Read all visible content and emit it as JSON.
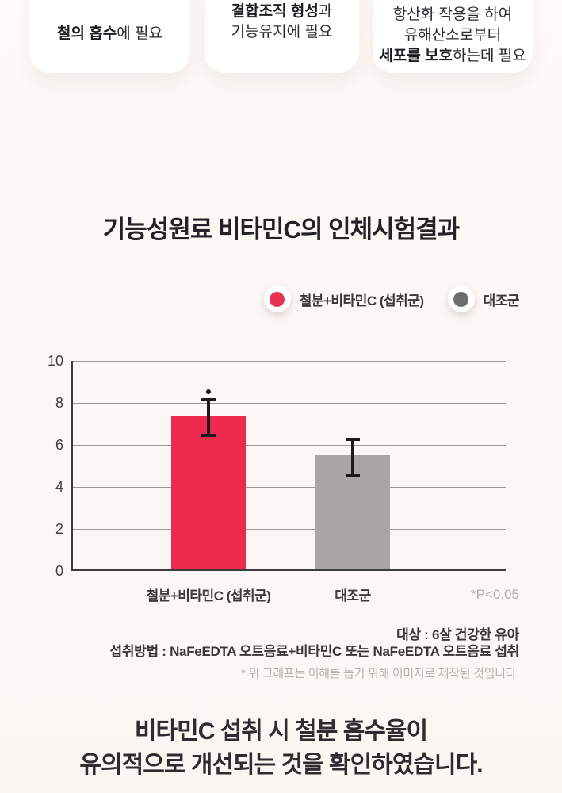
{
  "cards": [
    {
      "lines": [
        [
          {
            "t": "철의 흡수",
            "b": true
          },
          {
            "t": "에 필요",
            "b": false
          }
        ]
      ]
    },
    {
      "lines": [
        [
          {
            "t": "결합조직 형성",
            "b": true
          },
          {
            "t": "과",
            "b": false
          }
        ],
        [
          {
            "t": "기능유지에 필요",
            "b": false
          }
        ]
      ]
    },
    {
      "lines": [
        [
          {
            "t": "항산화 작용을 하여",
            "b": false
          }
        ],
        [
          {
            "t": "유해산소로부터",
            "b": false
          }
        ],
        [
          {
            "t": "세포를 보호",
            "b": true
          },
          {
            "t": "하는데 필요",
            "b": false
          }
        ]
      ]
    }
  ],
  "chart_data": {
    "type": "bar",
    "title": "기능성원료 비타민C의 인체시험결과",
    "categories": [
      "철분+비타민C (섭취군)",
      "대조군"
    ],
    "values": [
      7.3,
      5.4
    ],
    "error_bars": [
      0.9,
      0.9
    ],
    "ylim": [
      0,
      10
    ],
    "yticks": [
      0,
      2,
      4,
      6,
      8,
      10
    ],
    "grid": true,
    "legend_position": "top-right",
    "bars": [
      {
        "label": "철분+비타민C (섭취군)",
        "value": 7.3,
        "error": 0.9,
        "color": "#ed2b4f",
        "significant": true
      },
      {
        "label": "대조군",
        "value": 5.4,
        "error": 0.9,
        "color": "#a9a5a4",
        "significant": false
      }
    ],
    "legend": [
      {
        "label": "철분+비타민C (섭취군)",
        "color": "#e63354"
      },
      {
        "label": "대조군",
        "color": "#6f6c6c"
      }
    ],
    "annotation": "*P<0.05"
  },
  "notes": {
    "subject": "대상 : 6살 건강한 유아",
    "method": "섭취방법 : NaFeEDTA 오트음료+비타민C 또는 NaFeEDTA 오트음료 섭취",
    "disclaimer": "* 위 그래프는 이해를 돕기 위해 이미지로 제작된 것입니다."
  },
  "conclusion": {
    "line1": "비타민C 섭취 시 철분 흡수율이",
    "line2": "유의적으로 개선되는 것을 확인하였습니다."
  },
  "colors": {
    "accent_red": "#ed2b4f",
    "bar_gray": "#a9a5a4",
    "text_dark": "#2f2b31",
    "muted_gray": "#b8b2ae"
  }
}
